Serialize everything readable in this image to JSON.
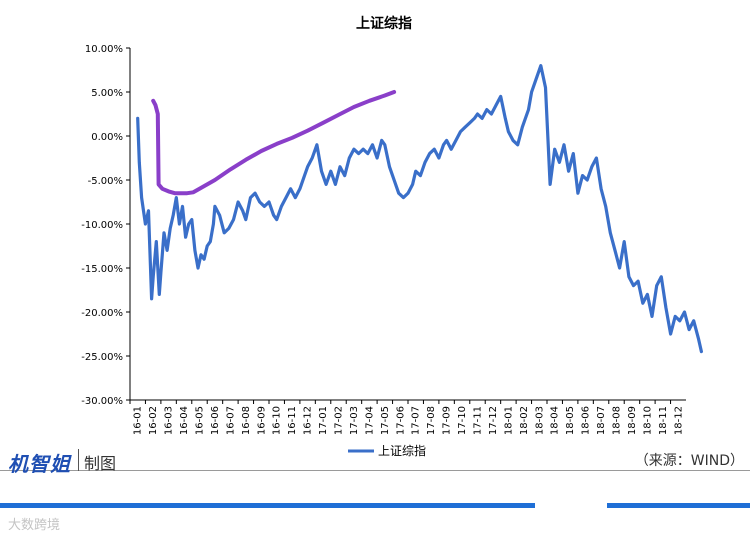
{
  "chart_data": {
    "type": "line",
    "title": "上证综指",
    "xlabel": "",
    "ylabel": "",
    "ylim": [
      -30,
      10
    ],
    "y_ticks": [
      "10.00%",
      "5.00%",
      "0.00%",
      "-5.00%",
      "-10.00%",
      "-15.00%",
      "-20.00%",
      "-25.00%",
      "-30.00%"
    ],
    "x_ticks": [
      "16-01",
      "16-02",
      "16-03",
      "16-04",
      "16-05",
      "16-06",
      "16-07",
      "16-08",
      "16-09",
      "16-10",
      "16-11",
      "16-12",
      "17-01",
      "17-02",
      "17-03",
      "17-04",
      "17-05",
      "17-06",
      "17-07",
      "17-08",
      "17-09",
      "17-10",
      "17-11",
      "17-12",
      "18-01",
      "18-02",
      "18-03",
      "18-04",
      "18-05",
      "18-06",
      "18-07",
      "18-08",
      "18-09",
      "18-10",
      "18-11",
      "18-12"
    ],
    "legend": {
      "position": "bottom",
      "entries": [
        "上证综指"
      ]
    },
    "grid": false,
    "series": [
      {
        "name": "上证综指",
        "color": "#3a6fc9",
        "x": [
          0,
          0.1,
          0.25,
          0.5,
          0.7,
          0.9,
          1.0,
          1.2,
          1.4,
          1.5,
          1.7,
          1.9,
          2.1,
          2.3,
          2.5,
          2.7,
          2.9,
          3.1,
          3.3,
          3.5,
          3.7,
          3.9,
          4.1,
          4.3,
          4.5,
          4.7,
          4.9,
          5.0,
          5.3,
          5.6,
          5.9,
          6.2,
          6.5,
          6.8,
          7.0,
          7.3,
          7.6,
          7.9,
          8.2,
          8.5,
          8.8,
          9.0,
          9.3,
          9.6,
          9.9,
          10.2,
          10.5,
          10.8,
          11.0,
          11.3,
          11.6,
          11.9,
          12.2,
          12.5,
          12.8,
          13.1,
          13.4,
          13.7,
          14.0,
          14.3,
          14.6,
          14.9,
          15.2,
          15.5,
          15.8,
          16.0,
          16.3,
          16.6,
          16.9,
          17.2,
          17.5,
          17.8,
          18.0,
          18.3,
          18.6,
          18.9,
          19.2,
          19.5,
          19.8,
          20.0,
          20.3,
          20.6,
          20.9,
          21.2,
          21.5,
          21.8,
          22.0,
          22.3,
          22.6,
          22.9,
          23.2,
          23.5,
          23.8,
          24.0,
          24.3,
          24.6,
          24.9,
          25.1,
          25.3,
          25.5,
          25.8,
          26.1,
          26.4,
          26.7,
          27.0,
          27.3,
          27.6,
          27.9,
          28.2,
          28.5,
          28.8,
          29.1,
          29.4,
          29.7,
          30.0,
          30.3,
          30.6,
          30.9,
          31.2,
          31.5,
          31.8,
          32.1,
          32.4,
          32.7,
          33.0,
          33.3,
          33.6,
          33.9,
          34.2,
          34.5,
          34.8,
          35.1,
          35.4,
          35.7,
          36.0,
          36.3,
          36.5
        ],
        "values": [
          2.0,
          -3.0,
          -7.0,
          -10.0,
          -8.5,
          -18.5,
          -16.0,
          -12.0,
          -18.0,
          -15.5,
          -11.0,
          -13.0,
          -10.5,
          -9.0,
          -7.0,
          -10.0,
          -8.0,
          -11.5,
          -10.0,
          -9.5,
          -13.0,
          -15.0,
          -13.5,
          -14.0,
          -12.5,
          -12.0,
          -10.0,
          -8.0,
          -9.0,
          -11.0,
          -10.5,
          -9.5,
          -7.5,
          -8.5,
          -9.5,
          -7.0,
          -6.5,
          -7.5,
          -8.0,
          -7.5,
          -9.0,
          -9.5,
          -8.0,
          -7.0,
          -6.0,
          -7.0,
          -6.0,
          -4.5,
          -3.5,
          -2.5,
          -1.0,
          -4.0,
          -5.5,
          -4.0,
          -5.5,
          -3.5,
          -4.5,
          -2.5,
          -1.5,
          -2.0,
          -1.5,
          -2.0,
          -1.0,
          -2.5,
          -0.5,
          -1.0,
          -3.5,
          -5.0,
          -6.5,
          -7.0,
          -6.5,
          -5.5,
          -4.0,
          -4.5,
          -3.0,
          -2.0,
          -1.5,
          -2.5,
          -1.0,
          -0.5,
          -1.5,
          -0.5,
          0.5,
          1.0,
          1.5,
          2.0,
          2.5,
          2.0,
          3.0,
          2.5,
          3.5,
          4.5,
          2.0,
          0.5,
          -0.5,
          -1.0,
          1.0,
          2.0,
          3.0,
          5.0,
          6.5,
          8.0,
          5.5,
          -5.5,
          -1.5,
          -3.0,
          -1.0,
          -4.0,
          -2.0,
          -6.5,
          -4.5,
          -5.0,
          -3.5,
          -2.5,
          -6.0,
          -8.0,
          -11.0,
          -13.0,
          -15.0,
          -12.0,
          -16.0,
          -17.0,
          -16.5,
          -19.0,
          -18.0,
          -20.5,
          -17.0,
          -16.0,
          -19.5,
          -22.5,
          -20.5,
          -21.0,
          -20.0,
          -22.0,
          -21.0,
          -23.0,
          -24.5
        ]
      }
    ],
    "annotation": {
      "type": "hand-drawn-stroke",
      "color": "#8a3fc9",
      "x": [
        1.0,
        1.15,
        1.3,
        1.35,
        1.6,
        2.0,
        2.4,
        2.8,
        3.2,
        3.6,
        4.0,
        5.0,
        6.0,
        7.0,
        8.0,
        9.0,
        10.0,
        11.0,
        12.0,
        13.0,
        14.0,
        15.0,
        16.0,
        16.6
      ],
      "values": [
        4.0,
        3.5,
        2.5,
        -5.5,
        -6.0,
        -6.3,
        -6.5,
        -6.5,
        -6.5,
        -6.4,
        -6.0,
        -5.0,
        -3.8,
        -2.7,
        -1.7,
        -0.9,
        -0.2,
        0.6,
        1.5,
        2.4,
        3.3,
        4.0,
        4.6,
        5.0
      ]
    }
  },
  "footer": {
    "brand": "机智姐",
    "brand_suffix": "制图",
    "source": "（来源：WIND）",
    "watermark": "大数跨境"
  }
}
